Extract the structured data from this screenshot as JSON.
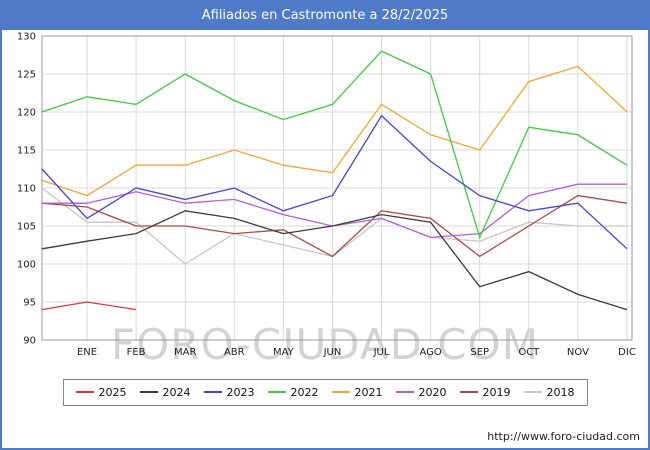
{
  "header": {
    "title": "Afiliados en Castromonte a 28/2/2025"
  },
  "watermark": "FORO-CIUDAD.COM",
  "footer": {
    "url": "http://www.foro-ciudad.com"
  },
  "colors": {
    "title_bar": "#4e7ac7",
    "border": "#4e7ac7",
    "grid": "#d9d9d9",
    "plot_frame": "#999999",
    "watermark": "#cccccc"
  },
  "chart_data": {
    "type": "line",
    "title": "Afiliados en Castromonte a 28/2/2025",
    "categories": [
      "ENE",
      "FEB",
      "MAR",
      "ABR",
      "MAY",
      "JUN",
      "JUL",
      "AGO",
      "SEP",
      "OCT",
      "NOV",
      "DIC"
    ],
    "ylim": [
      90,
      130
    ],
    "ytick_step": 5,
    "grid": true,
    "legend_position": "bottom",
    "series": [
      {
        "name": "2025",
        "color": "#e3383a",
        "start": 94,
        "values": [
          95,
          94
        ]
      },
      {
        "name": "2024",
        "color": "#3c3c3c",
        "start": 102,
        "values": [
          103,
          104,
          107,
          106,
          104,
          105,
          106.5,
          105.5,
          97,
          99,
          96,
          94
        ]
      },
      {
        "name": "2023",
        "color": "#4545d6",
        "start": 112.5,
        "values": [
          106,
          110,
          108.5,
          110,
          107,
          109,
          119.5,
          113.5,
          109,
          107,
          108,
          102
        ]
      },
      {
        "name": "2022",
        "color": "#3ecc3e",
        "start": 120,
        "values": [
          122,
          121,
          125,
          121.5,
          119,
          121,
          128,
          125,
          103.5,
          118,
          117,
          113
        ]
      },
      {
        "name": "2021",
        "color": "#f0a832",
        "start": 111,
        "values": [
          109,
          113,
          113,
          115,
          113,
          112,
          121,
          117,
          115,
          124,
          126,
          120
        ]
      },
      {
        "name": "2020",
        "color": "#b45fd2",
        "start": 108,
        "values": [
          108,
          109.5,
          108,
          108.5,
          106.5,
          105,
          106,
          103.5,
          104,
          109,
          110.5,
          110.5
        ]
      },
      {
        "name": "2019",
        "color": "#aa4b4b",
        "start": 108,
        "values": [
          107.5,
          105,
          105,
          104,
          104.5,
          101,
          107,
          106,
          101,
          105,
          109,
          108
        ]
      },
      {
        "name": "2018",
        "color": "#c8c8c8",
        "start": 110,
        "values": [
          105.5,
          105.5,
          100,
          104,
          102.5,
          101,
          106,
          103.5,
          103,
          105.5,
          105,
          105
        ]
      }
    ]
  }
}
